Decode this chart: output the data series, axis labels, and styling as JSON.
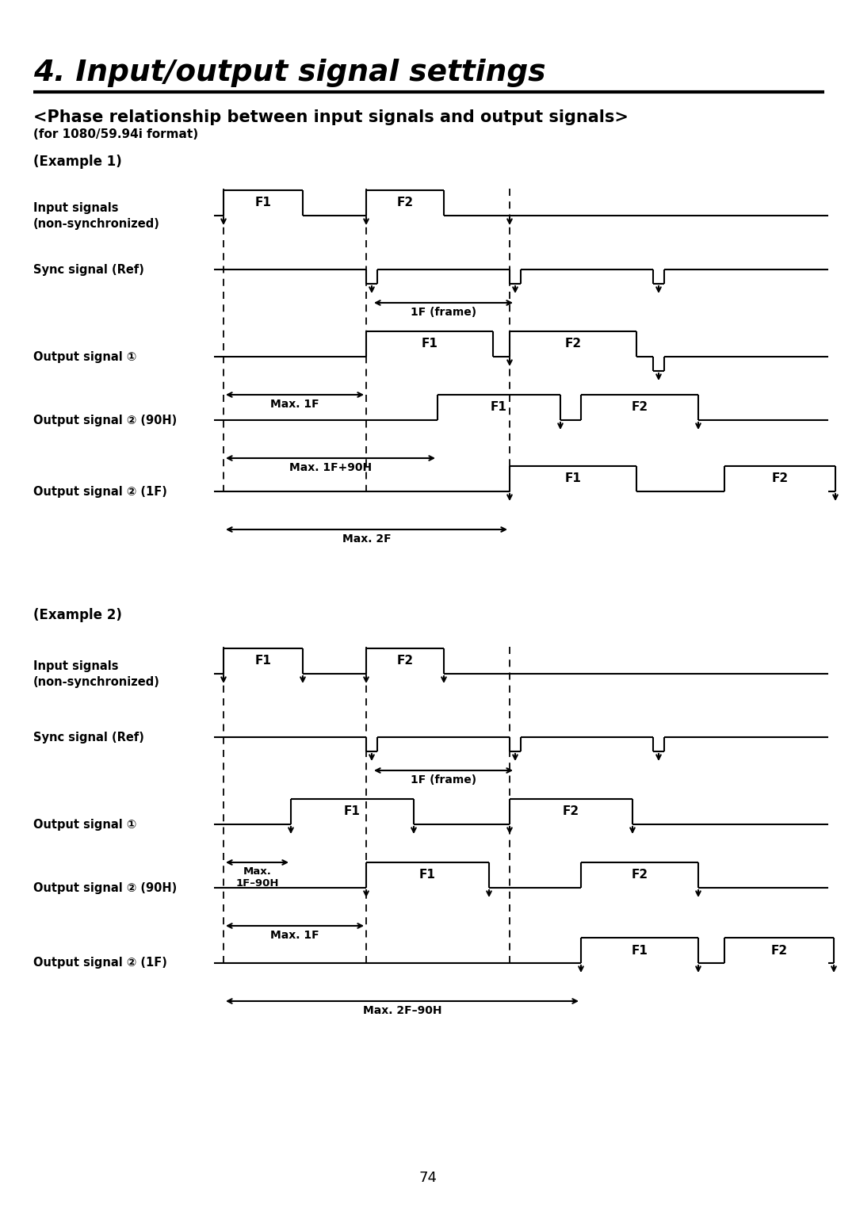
{
  "title": "4. Input/output signal settings",
  "subtitle": "<Phase relationship between input signals and output signals>",
  "format_note": "(for 1080/59.94i format)",
  "page_number": "74",
  "ex1_label": "(Example 1)",
  "ex2_label": "(Example 2)",
  "sig_labels_ex1": [
    "Input signals\n(non-synchronized)",
    "Sync signal (Ref)",
    "Output signal ①",
    "Output signal ② (90H)",
    "Output signal ② (1F)"
  ],
  "sig_labels_ex2": [
    "Input signals\n(non-synchronized)",
    "Sync signal (Ref)",
    "Output signal ①",
    "Output signal ② (90H)",
    "Output signal ② (1F)"
  ]
}
